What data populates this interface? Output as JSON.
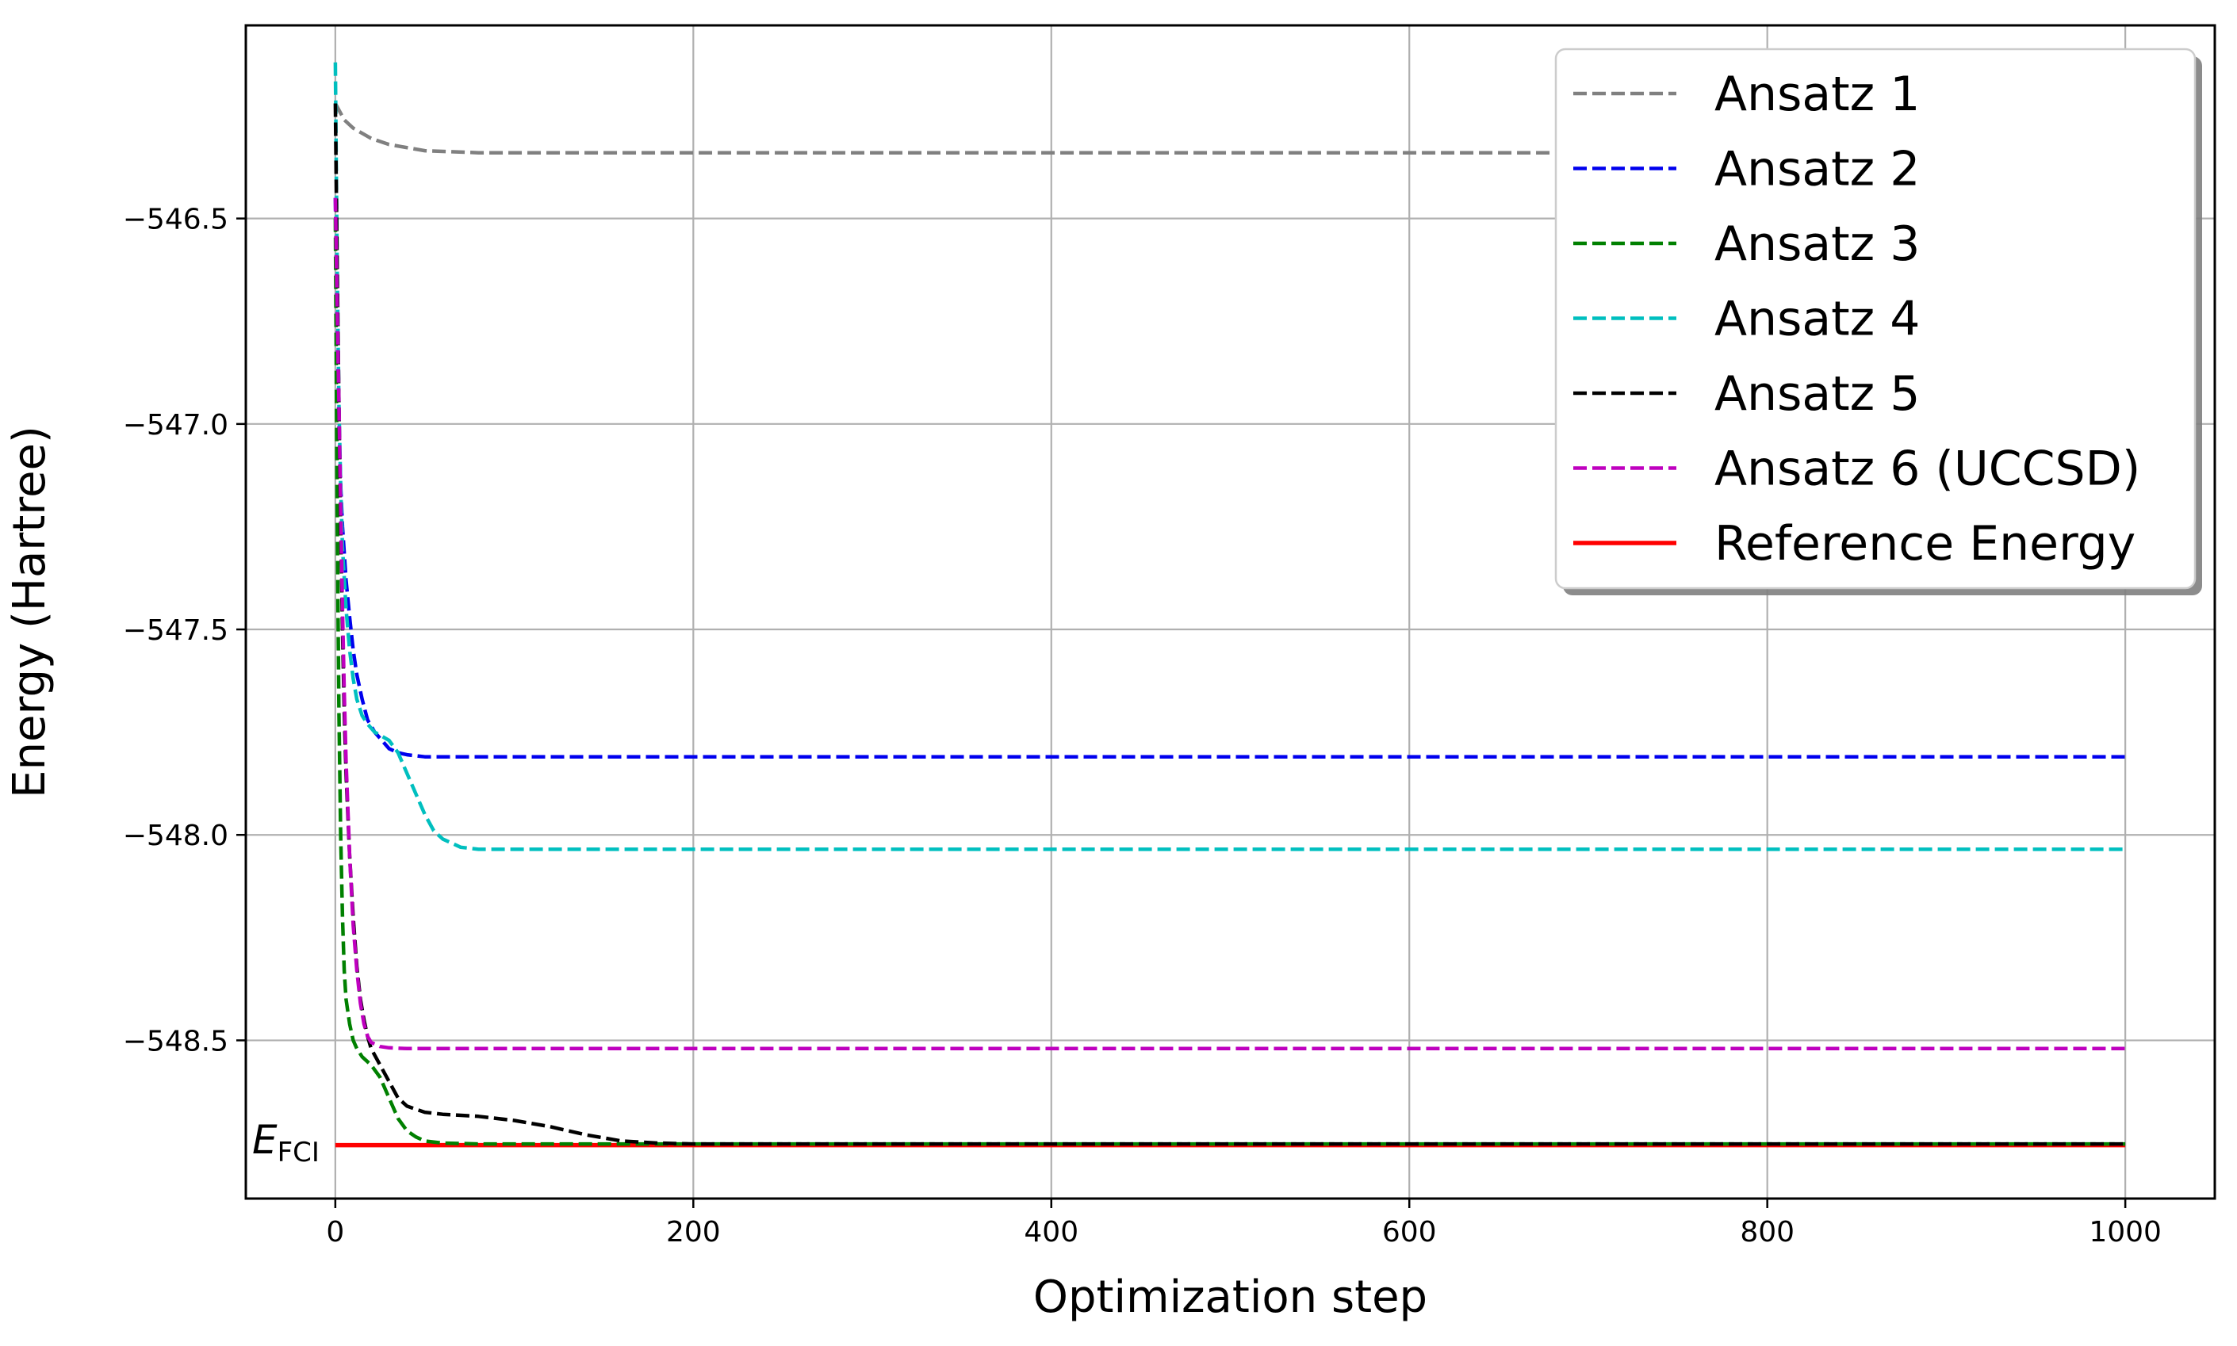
{
  "chart_data": {
    "type": "line",
    "title": "",
    "xlabel": "Optimization step",
    "ylabel": "Energy (Hartree)",
    "xlim": [
      -50,
      1050
    ],
    "ylim": [
      -548.885,
      -546.03
    ],
    "xticks": [
      0,
      200,
      400,
      600,
      800,
      1000
    ],
    "xtick_labels": [
      "0",
      "200",
      "400",
      "600",
      "800",
      "1000"
    ],
    "yticks": [
      -546.5,
      -547.0,
      -547.5,
      -548.0,
      -548.5
    ],
    "ytick_labels": [
      "−546.5",
      "−547.0",
      "−547.5",
      "−548.0",
      "−548.5"
    ],
    "grid": true,
    "legend_position": "top-right",
    "annotation": {
      "text": "E",
      "subscript": "FCI",
      "near_y": -548.76
    },
    "series": [
      {
        "name": "Ansatz 1",
        "color": "#808080",
        "dashed": true,
        "x": [
          0,
          5,
          10,
          20,
          30,
          50,
          80,
          120,
          200,
          400,
          600,
          800,
          1000
        ],
        "y": [
          -546.22,
          -546.26,
          -546.28,
          -546.305,
          -546.32,
          -546.335,
          -546.34,
          -546.34,
          -546.34,
          -546.34,
          -546.34,
          -546.34,
          -546.34
        ]
      },
      {
        "name": "Ansatz 2",
        "color": "#0000ee",
        "dashed": true,
        "x": [
          0,
          1,
          2,
          3,
          4,
          6,
          8,
          10,
          12,
          15,
          18,
          22,
          26,
          30,
          35,
          40,
          50,
          60,
          80,
          120,
          200,
          400,
          600,
          800,
          1000
        ],
        "y": [
          -546.45,
          -546.75,
          -547.0,
          -547.15,
          -547.25,
          -547.38,
          -547.47,
          -547.55,
          -547.61,
          -547.67,
          -547.72,
          -547.75,
          -547.77,
          -547.79,
          -547.8,
          -547.805,
          -547.81,
          -547.81,
          -547.81,
          -547.81,
          -547.81,
          -547.81,
          -547.81,
          -547.81,
          -547.81
        ]
      },
      {
        "name": "Ansatz 3",
        "color": "#008000",
        "dashed": true,
        "x": [
          0,
          1,
          2,
          3,
          4,
          5,
          6,
          8,
          10,
          12,
          15,
          20,
          25,
          30,
          35,
          40,
          45,
          50,
          60,
          80,
          100,
          150,
          200,
          400,
          600,
          800,
          1000
        ],
        "y": [
          -546.5,
          -547.2,
          -547.7,
          -548.0,
          -548.2,
          -548.33,
          -548.4,
          -548.46,
          -548.5,
          -548.52,
          -548.54,
          -548.56,
          -548.59,
          -548.64,
          -548.69,
          -548.72,
          -548.735,
          -548.745,
          -548.75,
          -548.752,
          -548.752,
          -548.752,
          -548.752,
          -548.752,
          -548.752,
          -548.752,
          -548.752
        ]
      },
      {
        "name": "Ansatz 4",
        "color": "#00bfbf",
        "dashed": true,
        "x": [
          0,
          1,
          2,
          3,
          4,
          6,
          8,
          10,
          12,
          15,
          18,
          22,
          26,
          30,
          35,
          40,
          45,
          50,
          55,
          60,
          65,
          70,
          80,
          100,
          150,
          200,
          400,
          600,
          800,
          1000
        ],
        "y": [
          -546.12,
          -546.6,
          -546.95,
          -547.15,
          -547.3,
          -547.45,
          -547.55,
          -547.62,
          -547.67,
          -547.71,
          -547.73,
          -547.75,
          -547.76,
          -547.77,
          -547.8,
          -547.85,
          -547.9,
          -547.95,
          -547.99,
          -548.01,
          -548.02,
          -548.03,
          -548.035,
          -548.035,
          -548.035,
          -548.035,
          -548.035,
          -548.035,
          -548.035,
          -548.035
        ]
      },
      {
        "name": "Ansatz 5",
        "color": "#000000",
        "dashed": true,
        "x": [
          0,
          1,
          2,
          3,
          4,
          5,
          6,
          8,
          10,
          12,
          14,
          16,
          18,
          20,
          25,
          30,
          35,
          40,
          50,
          60,
          80,
          100,
          120,
          140,
          160,
          180,
          200,
          250,
          300,
          400,
          600,
          800,
          1000
        ],
        "y": [
          -546.22,
          -546.6,
          -546.95,
          -547.25,
          -547.5,
          -547.7,
          -547.85,
          -548.05,
          -548.2,
          -548.32,
          -548.4,
          -548.45,
          -548.49,
          -548.52,
          -548.56,
          -548.6,
          -548.64,
          -548.66,
          -548.675,
          -548.68,
          -548.685,
          -548.695,
          -548.71,
          -548.73,
          -548.745,
          -548.75,
          -548.752,
          -548.752,
          -548.752,
          -548.752,
          -548.752,
          -548.752,
          -548.752
        ]
      },
      {
        "name": "Ansatz 6 (UCCSD)",
        "color": "#bf00bf",
        "dashed": true,
        "x": [
          0,
          1,
          2,
          3,
          4,
          5,
          6,
          8,
          10,
          12,
          14,
          16,
          18,
          20,
          25,
          30,
          40,
          60,
          100,
          200,
          400,
          600,
          800,
          1000
        ],
        "y": [
          -546.45,
          -546.7,
          -546.95,
          -547.2,
          -547.45,
          -547.65,
          -547.82,
          -548.05,
          -548.22,
          -548.33,
          -548.41,
          -548.46,
          -548.49,
          -548.505,
          -548.515,
          -548.518,
          -548.52,
          -548.52,
          -548.52,
          -548.52,
          -548.52,
          -548.52,
          -548.52,
          -548.52
        ]
      },
      {
        "name": "Reference Energy",
        "color": "#ff0000",
        "dashed": false,
        "x": [
          0,
          1000
        ],
        "y": [
          -548.755,
          -548.755
        ]
      }
    ]
  }
}
